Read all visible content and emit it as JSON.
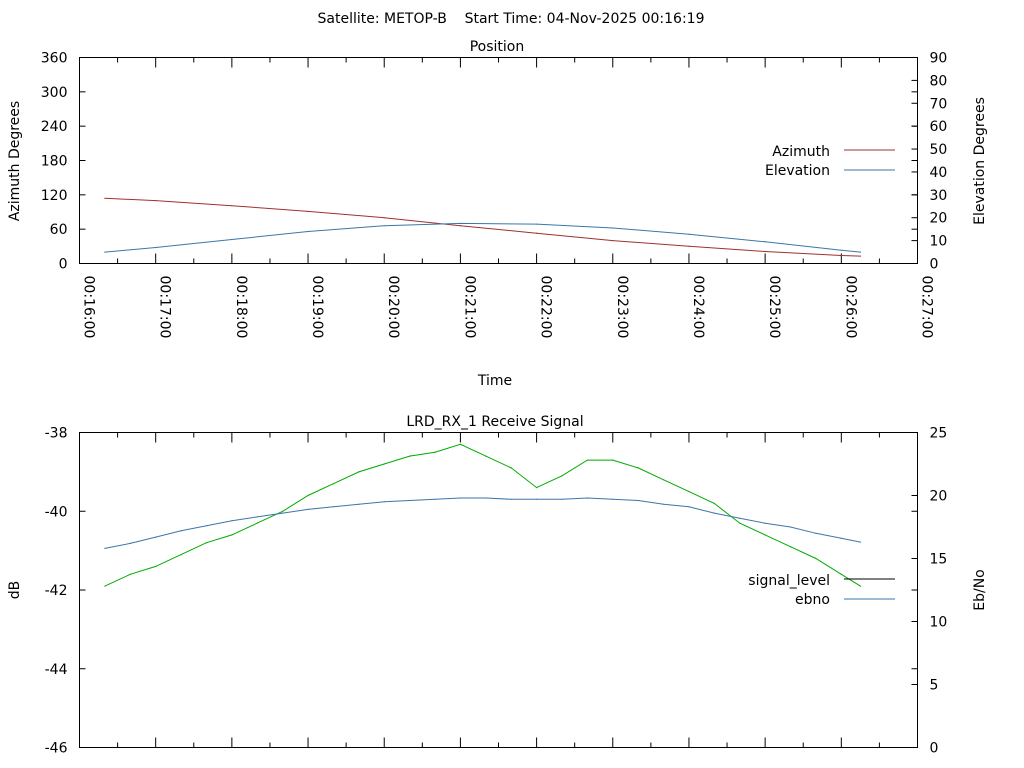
{
  "header": {
    "title": "Satellite: METOP-B    Start Time: 04-Nov-2025 00:16:19"
  },
  "colors": {
    "azimuth": "#a0302f",
    "elevation": "#3b76a8",
    "signal_level": "#00aa00",
    "ebno": "#3b76a8",
    "signal_legend": "#000000"
  },
  "chart_data": [
    {
      "type": "line",
      "title": "Position",
      "xlabel": "Time",
      "ylabel": "Azimuth Degrees",
      "y2label": "Elevation Degrees",
      "x_ticks": [
        "00:16:00",
        "00:17:00",
        "00:18:00",
        "00:19:00",
        "00:20:00",
        "00:21:00",
        "00:22:00",
        "00:23:00",
        "00:24:00",
        "00:25:00",
        "00:26:00",
        "00:27:00"
      ],
      "xlim": [
        "00:16:00",
        "00:27:00"
      ],
      "ylim": [
        0,
        360
      ],
      "y_ticks": [
        0,
        60,
        120,
        180,
        240,
        300,
        360
      ],
      "y2lim": [
        0,
        90
      ],
      "y2_ticks": [
        0,
        10,
        20,
        30,
        40,
        50,
        60,
        70,
        80,
        90
      ],
      "legend": "right",
      "series": [
        {
          "name": "Azimuth",
          "axis": "y",
          "x": [
            "00:16:20",
            "00:17:00",
            "00:18:00",
            "00:19:00",
            "00:20:00",
            "00:21:00",
            "00:22:00",
            "00:23:00",
            "00:24:00",
            "00:25:00",
            "00:26:00",
            "00:26:15"
          ],
          "values": [
            114,
            110,
            101,
            91,
            80,
            66,
            53,
            40,
            30,
            21,
            14,
            13
          ]
        },
        {
          "name": "Elevation",
          "axis": "y2",
          "x": [
            "00:16:20",
            "00:17:00",
            "00:18:00",
            "00:19:00",
            "00:20:00",
            "00:21:00",
            "00:22:00",
            "00:23:00",
            "00:24:00",
            "00:25:00",
            "00:26:00",
            "00:26:15"
          ],
          "values": [
            5,
            7,
            10.5,
            14,
            16.5,
            17.5,
            17.2,
            15.5,
            12.8,
            9.5,
            5.8,
            5
          ]
        }
      ]
    },
    {
      "type": "line",
      "title": "LRD_RX_1 Receive Signal",
      "ylabel": "dB",
      "y2label": "Eb/No",
      "xlim": [
        "00:16:00",
        "00:27:00"
      ],
      "ylim": [
        -46,
        -38
      ],
      "y_ticks": [
        -46,
        -44,
        -42,
        -40,
        -38
      ],
      "y2lim": [
        0,
        25
      ],
      "y2_ticks": [
        0,
        5,
        10,
        15,
        20,
        25
      ],
      "legend": "right",
      "series": [
        {
          "name": "signal_level",
          "axis": "y",
          "x": [
            "00:16:20",
            "00:16:40",
            "00:17:00",
            "00:17:20",
            "00:17:40",
            "00:18:00",
            "00:18:20",
            "00:18:40",
            "00:19:00",
            "00:19:20",
            "00:19:40",
            "00:20:00",
            "00:20:20",
            "00:20:40",
            "00:21:00",
            "00:21:20",
            "00:21:40",
            "00:22:00",
            "00:22:20",
            "00:22:40",
            "00:23:00",
            "00:23:20",
            "00:23:40",
            "00:24:00",
            "00:24:20",
            "00:24:40",
            "00:25:00",
            "00:25:20",
            "00:25:40",
            "00:26:00",
            "00:26:15"
          ],
          "values": [
            -41.9,
            -41.6,
            -41.4,
            -41.1,
            -40.8,
            -40.6,
            -40.3,
            -40.0,
            -39.6,
            -39.3,
            -39.0,
            -38.8,
            -38.6,
            -38.5,
            -38.3,
            -38.6,
            -38.9,
            -39.4,
            -39.1,
            -38.7,
            -38.7,
            -38.9,
            -39.2,
            -39.5,
            -39.8,
            -40.3,
            -40.6,
            -40.9,
            -41.2,
            -41.6,
            -41.9
          ]
        },
        {
          "name": "ebno",
          "axis": "y2",
          "x": [
            "00:16:20",
            "00:16:40",
            "00:17:00",
            "00:17:20",
            "00:17:40",
            "00:18:00",
            "00:18:20",
            "00:18:40",
            "00:19:00",
            "00:19:20",
            "00:19:40",
            "00:20:00",
            "00:20:20",
            "00:20:40",
            "00:21:00",
            "00:21:20",
            "00:21:40",
            "00:22:00",
            "00:22:20",
            "00:22:40",
            "00:23:00",
            "00:23:20",
            "00:23:40",
            "00:24:00",
            "00:24:20",
            "00:24:40",
            "00:25:00",
            "00:25:20",
            "00:25:40",
            "00:26:00",
            "00:26:15"
          ],
          "values": [
            15.8,
            16.2,
            16.7,
            17.2,
            17.6,
            18.0,
            18.3,
            18.6,
            18.9,
            19.1,
            19.3,
            19.5,
            19.6,
            19.7,
            19.8,
            19.8,
            19.7,
            19.7,
            19.7,
            19.8,
            19.7,
            19.6,
            19.3,
            19.1,
            18.6,
            18.2,
            17.8,
            17.5,
            17.0,
            16.6,
            16.3
          ]
        }
      ]
    }
  ]
}
